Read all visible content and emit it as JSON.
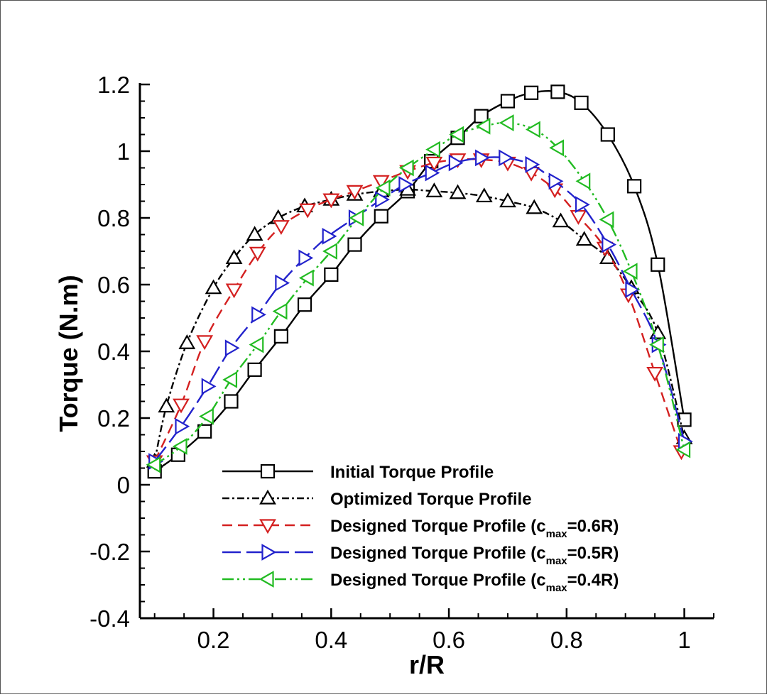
{
  "chart_data": {
    "type": "line",
    "title": "",
    "xlabel": "r/R",
    "ylabel": "Torque (N.m)",
    "xlim": [
      0.075,
      1.05
    ],
    "ylim": [
      -0.4,
      1.2
    ],
    "xticks": [
      0.2,
      0.4,
      0.6,
      0.8,
      1
    ],
    "xtick_labels": [
      "0.2",
      "0.4",
      "0.6",
      "0.8",
      "1"
    ],
    "yticks": [
      -0.4,
      -0.2,
      0,
      0.2,
      0.4,
      0.6,
      0.8,
      1,
      1.2
    ],
    "ytick_labels": [
      "-0.4",
      "-0.2",
      "0",
      "0.2",
      "0.4",
      "0.6",
      "0.8",
      "1",
      "1.2"
    ],
    "grid": false,
    "legend_position": "bottom-right",
    "series": [
      {
        "name": "Initial Torque Profile",
        "legend_main": "Initial Torque Profile",
        "legend_sub": "",
        "legend_tail": "",
        "color": "#000000",
        "dash": "",
        "marker": "square",
        "x": [
          0.1,
          0.14,
          0.185,
          0.23,
          0.27,
          0.315,
          0.355,
          0.4,
          0.44,
          0.485,
          0.53,
          0.57,
          0.615,
          0.655,
          0.7,
          0.74,
          0.785,
          0.825,
          0.87,
          0.915,
          0.955,
          1.0
        ],
        "y": [
          0.04,
          0.09,
          0.16,
          0.25,
          0.345,
          0.445,
          0.54,
          0.63,
          0.72,
          0.805,
          0.88,
          0.97,
          1.04,
          1.105,
          1.15,
          1.175,
          1.178,
          1.145,
          1.05,
          0.895,
          0.66,
          0.195
        ]
      },
      {
        "name": "Optimized Torque Profile",
        "legend_main": "Optimized Torque Profile",
        "legend_sub": "",
        "legend_tail": "",
        "color": "#000000",
        "dash": "10,4,3,4",
        "marker": "triangle-up",
        "x": [
          0.1,
          0.12,
          0.155,
          0.2,
          0.235,
          0.27,
          0.31,
          0.355,
          0.4,
          0.44,
          0.485,
          0.53,
          0.575,
          0.615,
          0.66,
          0.7,
          0.745,
          0.79,
          0.83,
          0.87,
          0.91,
          0.955,
          1.0
        ],
        "y": [
          0.07,
          0.235,
          0.425,
          0.59,
          0.68,
          0.75,
          0.8,
          0.835,
          0.855,
          0.87,
          0.88,
          0.885,
          0.88,
          0.875,
          0.865,
          0.85,
          0.83,
          0.79,
          0.735,
          0.68,
          0.59,
          0.455,
          0.14
        ]
      },
      {
        "name": "Designed Torque Profile (cmax=0.6R)",
        "legend_main": "Designed Torque Profile (c",
        "legend_sub": "max",
        "legend_tail": "=0.6R)",
        "color": "#d42020",
        "dash": "14,8",
        "marker": "triangle-down",
        "x": [
          0.1,
          0.145,
          0.185,
          0.235,
          0.275,
          0.315,
          0.36,
          0.4,
          0.44,
          0.485,
          0.53,
          0.575,
          0.615,
          0.655,
          0.7,
          0.74,
          0.78,
          0.82,
          0.865,
          0.905,
          0.95,
          0.995
        ],
        "y": [
          0.07,
          0.24,
          0.43,
          0.585,
          0.695,
          0.775,
          0.825,
          0.855,
          0.88,
          0.91,
          0.94,
          0.965,
          0.975,
          0.975,
          0.965,
          0.935,
          0.885,
          0.805,
          0.71,
          0.57,
          0.335,
          0.1
        ]
      },
      {
        "name": "Designed Torque Profile (cmax=0.5R)",
        "legend_main": "Designed Torque Profile (c",
        "legend_sub": "max",
        "legend_tail": "=0.5R)",
        "color": "#2222cc",
        "dash": "26,8",
        "marker": "triangle-right",
        "x": [
          0.1,
          0.145,
          0.19,
          0.23,
          0.275,
          0.315,
          0.355,
          0.395,
          0.44,
          0.485,
          0.525,
          0.57,
          0.61,
          0.655,
          0.695,
          0.74,
          0.78,
          0.825,
          0.87,
          0.91,
          0.955,
          1.0
        ],
        "y": [
          0.07,
          0.175,
          0.295,
          0.41,
          0.51,
          0.605,
          0.68,
          0.745,
          0.8,
          0.855,
          0.9,
          0.935,
          0.965,
          0.98,
          0.98,
          0.96,
          0.91,
          0.84,
          0.72,
          0.585,
          0.42,
          0.13
        ]
      },
      {
        "name": "Designed Torque Profile (cmax=0.4R)",
        "legend_main": "Designed Torque Profile (c",
        "legend_sub": "max",
        "legend_tail": "=0.4R)",
        "color": "#22bb22",
        "dash": "16,5,3,5,3,5",
        "marker": "triangle-left",
        "x": [
          0.1,
          0.145,
          0.19,
          0.23,
          0.275,
          0.315,
          0.36,
          0.4,
          0.445,
          0.49,
          0.53,
          0.575,
          0.615,
          0.66,
          0.7,
          0.745,
          0.785,
          0.83,
          0.87,
          0.91,
          0.955,
          1.0
        ],
        "y": [
          0.06,
          0.115,
          0.205,
          0.315,
          0.42,
          0.52,
          0.62,
          0.7,
          0.8,
          0.89,
          0.95,
          1.005,
          1.05,
          1.075,
          1.085,
          1.065,
          1.01,
          0.91,
          0.795,
          0.64,
          0.42,
          0.105
        ]
      }
    ]
  }
}
